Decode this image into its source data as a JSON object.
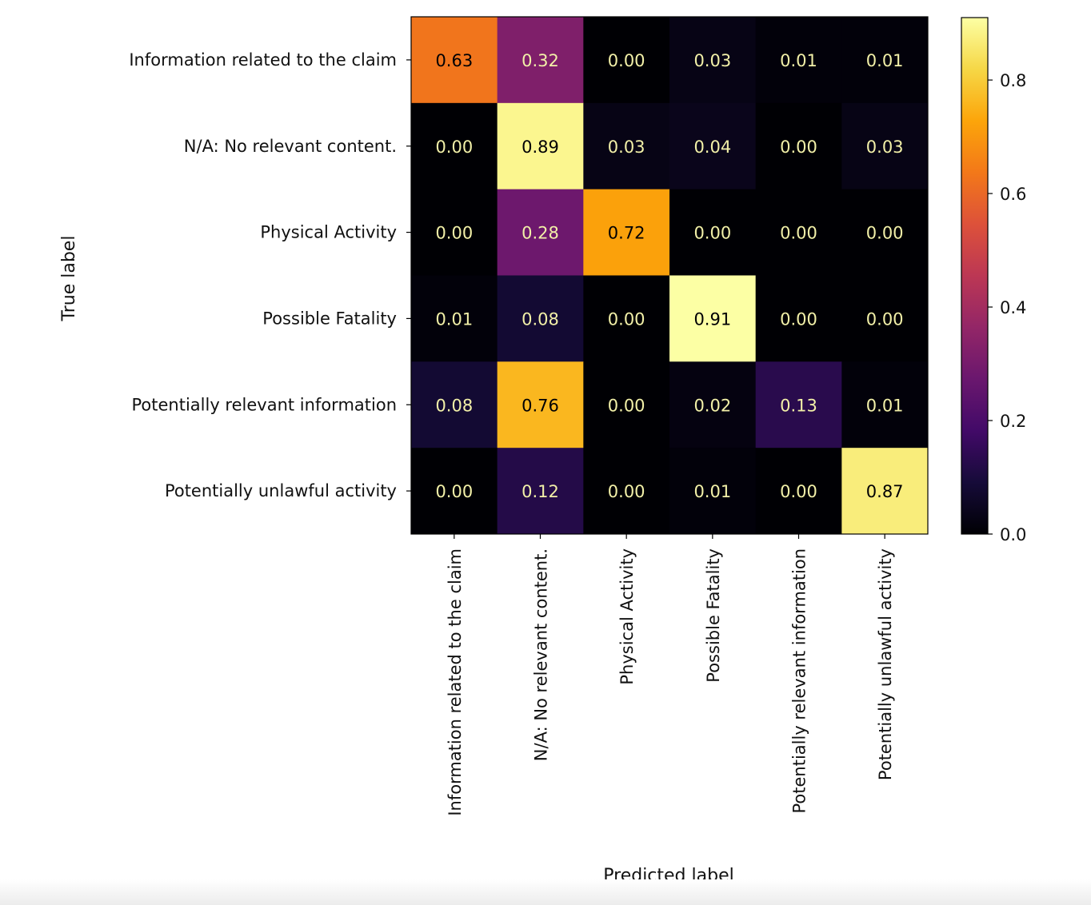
{
  "chart_data": {
    "type": "heatmap",
    "xlabel": "Predicted label",
    "ylabel": "True label",
    "labels": [
      "Information related to the claim",
      "N/A: No relevant content.",
      "Physical Activity",
      "Possible Fatality",
      "Potentially relevant information",
      "Potentially unlawful activity"
    ],
    "values": [
      [
        0.63,
        0.32,
        0.0,
        0.03,
        0.01,
        0.01
      ],
      [
        0.0,
        0.89,
        0.03,
        0.04,
        0.0,
        0.03
      ],
      [
        0.0,
        0.28,
        0.72,
        0.0,
        0.0,
        0.0
      ],
      [
        0.01,
        0.08,
        0.0,
        0.91,
        0.0,
        0.0
      ],
      [
        0.08,
        0.76,
        0.0,
        0.02,
        0.13,
        0.01
      ],
      [
        0.0,
        0.12,
        0.0,
        0.01,
        0.0,
        0.87
      ]
    ],
    "colormap": "inferno",
    "color_range": [
      0.0,
      0.91
    ],
    "colorbar_ticks": [
      "0.0",
      "0.2",
      "0.4",
      "0.6",
      "0.8"
    ],
    "grid": false
  }
}
